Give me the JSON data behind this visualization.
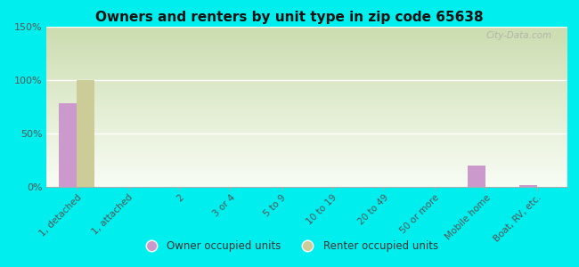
{
  "title": "Owners and renters by unit type in zip code 65638",
  "categories": [
    "1, detached",
    "1, attached",
    "2",
    "3 or 4",
    "5 to 9",
    "10 to 19",
    "20 to 49",
    "50 or more",
    "Mobile home",
    "Boat, RV, etc."
  ],
  "owner_values": [
    78,
    0,
    0,
    0,
    0,
    0,
    0,
    0,
    20,
    2
  ],
  "renter_values": [
    100,
    0,
    0,
    0,
    0,
    0,
    0,
    0,
    0,
    0
  ],
  "owner_color": "#cc99cc",
  "renter_color": "#cccc99",
  "background_outer": "#00eeee",
  "background_plot_top": "#e8f0d8",
  "background_plot_bottom": "#f5faf0",
  "ylim": [
    0,
    150
  ],
  "yticks": [
    0,
    50,
    100,
    150
  ],
  "ytick_labels": [
    "0%",
    "50%",
    "100%",
    "150%"
  ],
  "bar_width": 0.35,
  "watermark": "City-Data.com",
  "legend_labels": [
    "Owner occupied units",
    "Renter occupied units"
  ]
}
